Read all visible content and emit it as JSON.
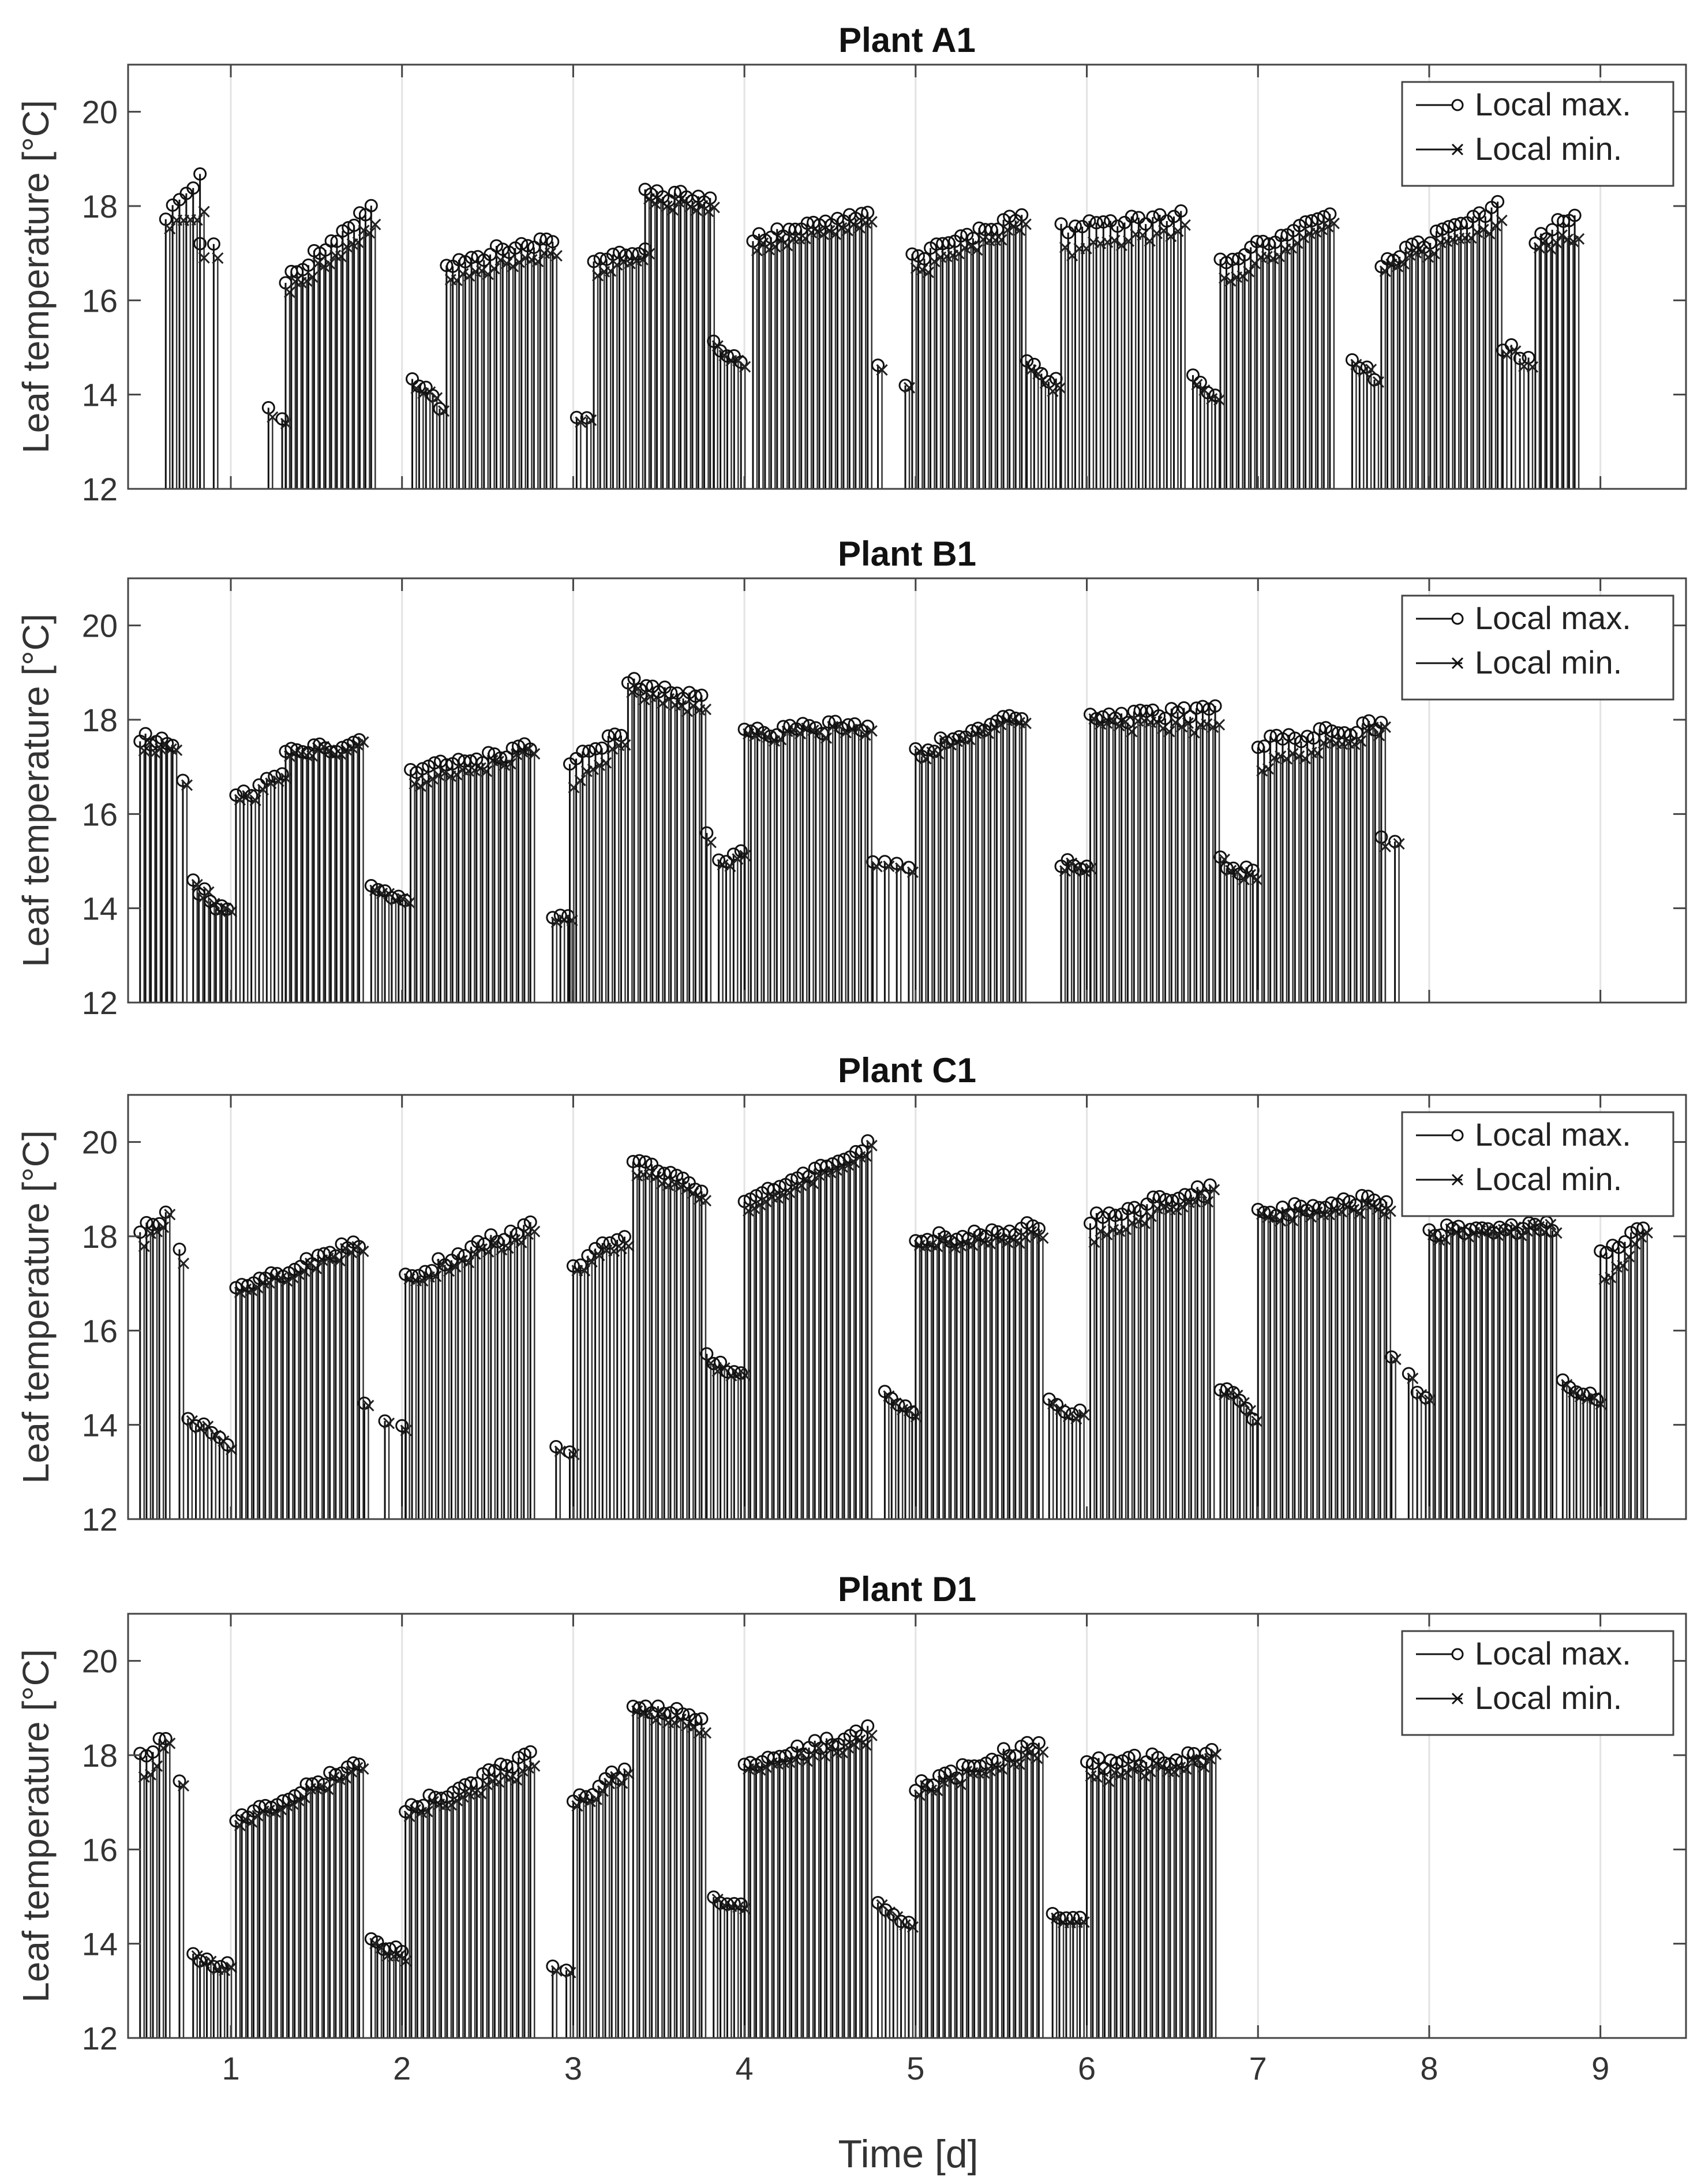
{
  "figure": {
    "xlabel": "Time [d]",
    "x_tick_labels": [
      "1",
      "2",
      "3",
      "4",
      "5",
      "6",
      "7",
      "8",
      "9"
    ]
  },
  "chart_data": [
    {
      "type": "stem",
      "title": "Plant A1",
      "ylabel": "Leaf temperature [°C]",
      "xlim": [
        0.4,
        9.5
      ],
      "ylim": [
        12,
        21
      ],
      "yticks": [
        12,
        14,
        16,
        18,
        20
      ],
      "xticks": [
        1,
        2,
        3,
        4,
        5,
        6,
        7,
        8,
        9
      ],
      "legend": [
        "Local max.",
        "Local min."
      ],
      "legend_position": "top-right",
      "day_segments": [
        {
          "start": 0.62,
          "end": 0.82,
          "min_start": 17.6,
          "min_end": 17.8,
          "max_start": 17.8,
          "max_end": 18.6,
          "count": 6
        },
        {
          "start": 0.82,
          "end": 0.9,
          "min_start": 16.8,
          "min_end": 16.9,
          "max_start": 17.1,
          "max_end": 17.2,
          "count": 2
        },
        {
          "start": 1.22,
          "end": 1.3,
          "min_start": 13.5,
          "min_end": 13.5,
          "max_start": 13.7,
          "max_end": 13.6,
          "count": 2
        },
        {
          "start": 1.32,
          "end": 1.82,
          "min_start": 16.2,
          "min_end": 17.6,
          "max_start": 16.4,
          "max_end": 18.0,
          "count": 16
        },
        {
          "start": 2.06,
          "end": 2.22,
          "min_start": 14.1,
          "min_end": 13.8,
          "max_start": 14.3,
          "max_end": 13.8,
          "count": 5
        },
        {
          "start": 2.26,
          "end": 2.88,
          "min_start": 16.5,
          "min_end": 17.0,
          "max_start": 16.8,
          "max_end": 17.3,
          "count": 18
        },
        {
          "start": 3.02,
          "end": 3.08,
          "min_start": 13.4,
          "min_end": 13.4,
          "max_start": 13.5,
          "max_end": 13.4,
          "count": 2
        },
        {
          "start": 3.12,
          "end": 3.42,
          "min_start": 16.5,
          "min_end": 17.0,
          "max_start": 16.8,
          "max_end": 17.1,
          "count": 9
        },
        {
          "start": 3.42,
          "end": 3.8,
          "min_start": 18.1,
          "min_end": 17.9,
          "max_start": 18.3,
          "max_end": 18.1,
          "count": 12
        },
        {
          "start": 3.82,
          "end": 3.98,
          "min_start": 15.0,
          "min_end": 14.6,
          "max_start": 15.1,
          "max_end": 14.7,
          "count": 5
        },
        {
          "start": 4.05,
          "end": 4.72,
          "min_start": 17.1,
          "min_end": 17.6,
          "max_start": 17.3,
          "max_end": 17.8,
          "count": 20
        },
        {
          "start": 4.78,
          "end": 4.8,
          "min_start": 14.5,
          "min_end": 14.5,
          "max_start": 14.6,
          "max_end": 14.6,
          "count": 1
        },
        {
          "start": 4.94,
          "end": 4.96,
          "min_start": 14.1,
          "min_end": 14.1,
          "max_start": 14.1,
          "max_end": 14.1,
          "count": 1
        },
        {
          "start": 4.98,
          "end": 5.62,
          "min_start": 16.6,
          "min_end": 17.6,
          "max_start": 16.9,
          "max_end": 17.8,
          "count": 19
        },
        {
          "start": 5.65,
          "end": 5.82,
          "min_start": 14.4,
          "min_end": 14.1,
          "max_start": 14.6,
          "max_end": 14.3,
          "count": 5
        },
        {
          "start": 5.85,
          "end": 6.55,
          "min_start": 17.0,
          "min_end": 17.5,
          "max_start": 17.5,
          "max_end": 17.8,
          "count": 18
        },
        {
          "start": 6.62,
          "end": 6.75,
          "min_start": 14.1,
          "min_end": 14.0,
          "max_start": 14.3,
          "max_end": 14.1,
          "count": 4
        },
        {
          "start": 6.78,
          "end": 7.42,
          "min_start": 16.4,
          "min_end": 17.6,
          "max_start": 16.8,
          "max_end": 17.8,
          "count": 19
        },
        {
          "start": 7.55,
          "end": 7.68,
          "min_start": 14.6,
          "min_end": 14.4,
          "max_start": 14.7,
          "max_end": 14.4,
          "count": 4
        },
        {
          "start": 7.72,
          "end": 8.4,
          "min_start": 16.7,
          "min_end": 17.6,
          "max_start": 16.8,
          "max_end": 18.0,
          "count": 20
        },
        {
          "start": 8.43,
          "end": 8.58,
          "min_start": 14.9,
          "min_end": 14.6,
          "max_start": 15.0,
          "max_end": 14.8,
          "count": 4
        },
        {
          "start": 8.62,
          "end": 8.85,
          "min_start": 17.1,
          "min_end": 17.4,
          "max_start": 17.2,
          "max_end": 17.9,
          "count": 8
        }
      ]
    },
    {
      "type": "stem",
      "title": "Plant B1",
      "ylabel": "Leaf temperature [°C]",
      "xlim": [
        0.4,
        9.5
      ],
      "ylim": [
        12,
        21
      ],
      "yticks": [
        12,
        14,
        16,
        18,
        20
      ],
      "xticks": [
        1,
        2,
        3,
        4,
        5,
        6,
        7,
        8,
        9
      ],
      "legend": [
        "Local max.",
        "Local min."
      ],
      "legend_position": "top-right",
      "day_segments": [
        {
          "start": 0.47,
          "end": 0.66,
          "min_start": 17.4,
          "min_end": 17.4,
          "max_start": 17.6,
          "max_end": 17.5,
          "count": 7
        },
        {
          "start": 0.72,
          "end": 0.74,
          "min_start": 16.6,
          "min_end": 16.6,
          "max_start": 16.7,
          "max_end": 16.7,
          "count": 1
        },
        {
          "start": 0.78,
          "end": 0.98,
          "min_start": 14.4,
          "min_end": 13.9,
          "max_start": 14.5,
          "max_end": 13.9,
          "count": 7
        },
        {
          "start": 1.03,
          "end": 1.3,
          "min_start": 16.2,
          "min_end": 16.7,
          "max_start": 16.3,
          "max_end": 16.8,
          "count": 7
        },
        {
          "start": 1.32,
          "end": 1.75,
          "min_start": 17.2,
          "min_end": 17.5,
          "max_start": 17.3,
          "max_end": 17.5,
          "count": 14
        },
        {
          "start": 1.82,
          "end": 2.02,
          "min_start": 14.3,
          "min_end": 14.1,
          "max_start": 14.4,
          "max_end": 14.1,
          "count": 6
        },
        {
          "start": 2.05,
          "end": 2.75,
          "min_start": 16.6,
          "min_end": 17.3,
          "max_start": 16.9,
          "max_end": 17.4,
          "count": 21
        },
        {
          "start": 2.88,
          "end": 2.97,
          "min_start": 13.7,
          "min_end": 13.7,
          "max_start": 13.8,
          "max_end": 13.8,
          "count": 3
        },
        {
          "start": 2.98,
          "end": 3.28,
          "min_start": 16.6,
          "min_end": 17.5,
          "max_start": 17.1,
          "max_end": 17.7,
          "count": 9
        },
        {
          "start": 3.32,
          "end": 3.75,
          "min_start": 18.6,
          "min_end": 18.1,
          "max_start": 18.8,
          "max_end": 18.4,
          "count": 13
        },
        {
          "start": 3.78,
          "end": 3.8,
          "min_start": 15.3,
          "min_end": 15.3,
          "max_start": 15.5,
          "max_end": 15.5,
          "count": 1
        },
        {
          "start": 3.85,
          "end": 3.98,
          "min_start": 15.0,
          "min_end": 15.0,
          "max_start": 15.1,
          "max_end": 15.1,
          "count": 4
        },
        {
          "start": 4.0,
          "end": 4.72,
          "min_start": 17.6,
          "min_end": 17.8,
          "max_start": 17.7,
          "max_end": 17.9,
          "count": 20
        },
        {
          "start": 4.75,
          "end": 4.96,
          "min_start": 15.0,
          "min_end": 14.7,
          "max_start": 15.1,
          "max_end": 14.8,
          "count": 4
        },
        {
          "start": 5.0,
          "end": 5.62,
          "min_start": 17.3,
          "min_end": 18.0,
          "max_start": 17.3,
          "max_end": 18.1,
          "count": 18
        },
        {
          "start": 5.85,
          "end": 6.0,
          "min_start": 14.9,
          "min_end": 14.9,
          "max_start": 15.0,
          "max_end": 14.9,
          "count": 5
        },
        {
          "start": 6.02,
          "end": 6.75,
          "min_start": 17.9,
          "min_end": 17.8,
          "max_start": 18.0,
          "max_end": 18.2,
          "count": 21
        },
        {
          "start": 6.78,
          "end": 6.97,
          "min_start": 15.0,
          "min_end": 14.5,
          "max_start": 15.0,
          "max_end": 14.7,
          "count": 6
        },
        {
          "start": 7.0,
          "end": 7.72,
          "min_start": 17.0,
          "min_end": 17.8,
          "max_start": 17.5,
          "max_end": 17.9,
          "count": 21
        },
        {
          "start": 7.72,
          "end": 7.8,
          "min_start": 15.4,
          "min_end": 15.4,
          "max_start": 15.6,
          "max_end": 15.4,
          "count": 2
        }
      ]
    },
    {
      "type": "stem",
      "title": "Plant C1",
      "ylabel": "Leaf temperature [°C]",
      "xlim": [
        0.4,
        9.5
      ],
      "ylim": [
        12,
        21
      ],
      "yticks": [
        12,
        14,
        16,
        18,
        20
      ],
      "xticks": [
        1,
        2,
        3,
        4,
        5,
        6,
        7,
        8,
        9
      ],
      "legend": [
        "Local max.",
        "Local min."
      ],
      "legend_position": "top-right",
      "day_segments": [
        {
          "start": 0.47,
          "end": 0.62,
          "min_start": 17.9,
          "min_end": 18.4,
          "max_start": 18.2,
          "max_end": 18.4,
          "count": 5
        },
        {
          "start": 0.7,
          "end": 0.73,
          "min_start": 17.4,
          "min_end": 17.4,
          "max_start": 17.7,
          "max_end": 17.7,
          "count": 1
        },
        {
          "start": 0.75,
          "end": 0.98,
          "min_start": 14.1,
          "min_end": 13.6,
          "max_start": 14.1,
          "max_end": 13.7,
          "count": 6
        },
        {
          "start": 1.03,
          "end": 1.75,
          "min_start": 16.7,
          "min_end": 17.8,
          "max_start": 16.8,
          "max_end": 17.9,
          "count": 22
        },
        {
          "start": 1.78,
          "end": 1.8,
          "min_start": 14.4,
          "min_end": 14.4,
          "max_start": 14.4,
          "max_end": 14.4,
          "count": 1
        },
        {
          "start": 1.9,
          "end": 2.0,
          "min_start": 14.0,
          "min_end": 13.8,
          "max_start": 14.0,
          "max_end": 13.9,
          "count": 2
        },
        {
          "start": 2.02,
          "end": 2.75,
          "min_start": 17.0,
          "min_end": 18.1,
          "max_start": 17.1,
          "max_end": 18.3,
          "count": 20
        },
        {
          "start": 2.9,
          "end": 2.98,
          "min_start": 13.5,
          "min_end": 13.5,
          "max_start": 13.6,
          "max_end": 13.5,
          "count": 2
        },
        {
          "start": 3.0,
          "end": 3.3,
          "min_start": 17.3,
          "min_end": 17.8,
          "max_start": 17.4,
          "max_end": 18.0,
          "count": 8
        },
        {
          "start": 3.35,
          "end": 3.75,
          "min_start": 19.3,
          "min_end": 18.8,
          "max_start": 19.6,
          "max_end": 19.0,
          "count": 12
        },
        {
          "start": 3.78,
          "end": 3.98,
          "min_start": 15.3,
          "min_end": 15.0,
          "max_start": 15.5,
          "max_end": 15.0,
          "count": 6
        },
        {
          "start": 4.0,
          "end": 4.72,
          "min_start": 18.5,
          "min_end": 19.8,
          "max_start": 18.7,
          "max_end": 19.9,
          "count": 22
        },
        {
          "start": 4.82,
          "end": 4.98,
          "min_start": 14.5,
          "min_end": 14.2,
          "max_start": 14.6,
          "max_end": 14.3,
          "count": 5
        },
        {
          "start": 5.0,
          "end": 5.72,
          "min_start": 17.8,
          "min_end": 18.0,
          "max_start": 17.9,
          "max_end": 18.2,
          "count": 22
        },
        {
          "start": 5.78,
          "end": 5.96,
          "min_start": 14.4,
          "min_end": 14.2,
          "max_start": 14.5,
          "max_end": 14.3,
          "count": 5
        },
        {
          "start": 6.02,
          "end": 6.72,
          "min_start": 18.0,
          "min_end": 18.9,
          "max_start": 18.4,
          "max_end": 19.0,
          "count": 20
        },
        {
          "start": 6.78,
          "end": 6.97,
          "min_start": 14.7,
          "min_end": 14.2,
          "max_start": 14.8,
          "max_end": 14.2,
          "count": 6
        },
        {
          "start": 7.0,
          "end": 7.75,
          "min_start": 18.4,
          "min_end": 18.6,
          "max_start": 18.5,
          "max_end": 18.8,
          "count": 22
        },
        {
          "start": 7.78,
          "end": 7.8,
          "min_start": 15.5,
          "min_end": 15.5,
          "max_start": 15.5,
          "max_end": 15.5,
          "count": 1
        },
        {
          "start": 7.88,
          "end": 7.98,
          "min_start": 14.9,
          "min_end": 14.6,
          "max_start": 15.0,
          "max_end": 14.6,
          "count": 3
        },
        {
          "start": 8.0,
          "end": 8.72,
          "min_start": 18.0,
          "min_end": 18.2,
          "max_start": 18.1,
          "max_end": 18.2,
          "count": 22
        },
        {
          "start": 8.78,
          "end": 8.98,
          "min_start": 14.8,
          "min_end": 14.5,
          "max_start": 14.9,
          "max_end": 14.6,
          "count": 6
        },
        {
          "start": 9.0,
          "end": 9.25,
          "min_start": 17.1,
          "min_end": 18.0,
          "max_start": 17.7,
          "max_end": 18.1,
          "count": 8
        }
      ]
    },
    {
      "type": "stem",
      "title": "Plant D1",
      "ylabel": "Leaf temperature [°C]",
      "xlim": [
        0.4,
        9.5
      ],
      "ylim": [
        12,
        21
      ],
      "yticks": [
        12,
        14,
        16,
        18,
        20
      ],
      "xticks": [
        1,
        2,
        3,
        4,
        5,
        6,
        7,
        8,
        9
      ],
      "legend": [
        "Local max.",
        "Local min."
      ],
      "legend_position": "top-right",
      "day_segments": [
        {
          "start": 0.47,
          "end": 0.62,
          "min_start": 17.5,
          "min_end": 18.2,
          "max_start": 18.0,
          "max_end": 18.3,
          "count": 5
        },
        {
          "start": 0.7,
          "end": 0.73,
          "min_start": 17.3,
          "min_end": 17.3,
          "max_start": 17.4,
          "max_end": 17.4,
          "count": 1
        },
        {
          "start": 0.78,
          "end": 0.98,
          "min_start": 13.8,
          "min_end": 13.4,
          "max_start": 13.8,
          "max_end": 13.5,
          "count": 6
        },
        {
          "start": 1.03,
          "end": 1.75,
          "min_start": 16.5,
          "min_end": 17.7,
          "max_start": 16.6,
          "max_end": 17.8,
          "count": 22
        },
        {
          "start": 1.82,
          "end": 2.0,
          "min_start": 13.9,
          "min_end": 13.6,
          "max_start": 14.0,
          "max_end": 13.8,
          "count": 6
        },
        {
          "start": 2.02,
          "end": 2.75,
          "min_start": 16.7,
          "min_end": 17.7,
          "max_start": 16.8,
          "max_end": 18.0,
          "count": 22
        },
        {
          "start": 2.88,
          "end": 2.96,
          "min_start": 13.5,
          "min_end": 13.5,
          "max_start": 13.6,
          "max_end": 13.5,
          "count": 2
        },
        {
          "start": 3.0,
          "end": 3.3,
          "min_start": 16.9,
          "min_end": 17.6,
          "max_start": 17.0,
          "max_end": 17.7,
          "count": 9
        },
        {
          "start": 3.35,
          "end": 3.75,
          "min_start": 18.9,
          "min_end": 18.5,
          "max_start": 19.0,
          "max_end": 18.8,
          "count": 12
        },
        {
          "start": 3.82,
          "end": 3.98,
          "min_start": 15.0,
          "min_end": 14.8,
          "max_start": 15.0,
          "max_end": 14.9,
          "count": 5
        },
        {
          "start": 4.0,
          "end": 4.72,
          "min_start": 17.7,
          "min_end": 18.3,
          "max_start": 17.8,
          "max_end": 18.5,
          "count": 22
        },
        {
          "start": 4.78,
          "end": 4.96,
          "min_start": 14.8,
          "min_end": 14.4,
          "max_start": 14.8,
          "max_end": 14.5,
          "count": 5
        },
        {
          "start": 5.0,
          "end": 5.72,
          "min_start": 17.2,
          "min_end": 18.1,
          "max_start": 17.3,
          "max_end": 18.3,
          "count": 22
        },
        {
          "start": 5.8,
          "end": 5.96,
          "min_start": 14.6,
          "min_end": 14.4,
          "max_start": 14.7,
          "max_end": 14.5,
          "count": 5
        },
        {
          "start": 6.0,
          "end": 6.73,
          "min_start": 17.5,
          "min_end": 17.9,
          "max_start": 17.8,
          "max_end": 18.0,
          "count": 22
        }
      ]
    }
  ]
}
